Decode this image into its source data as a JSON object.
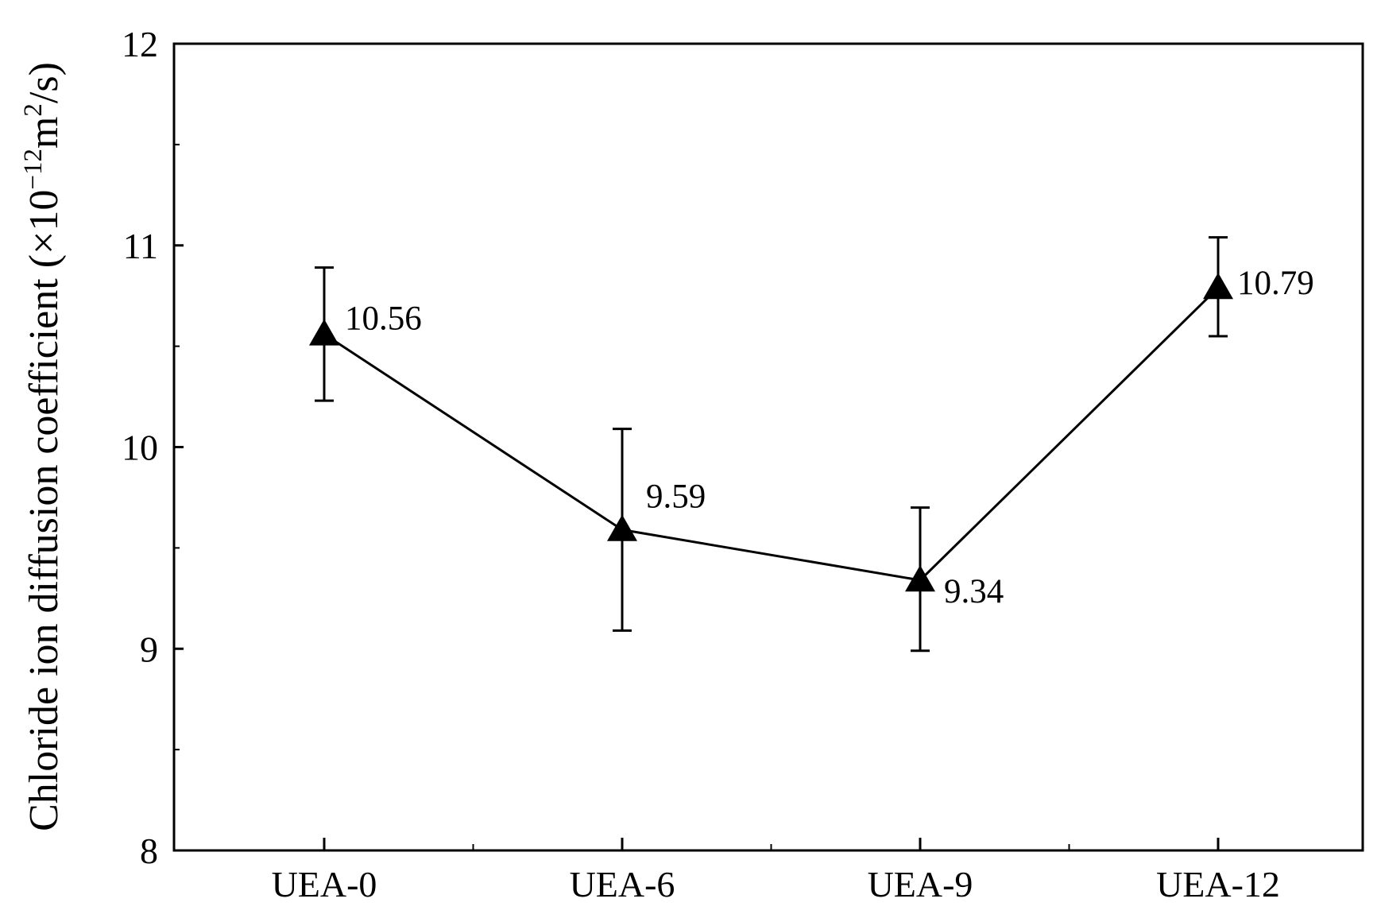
{
  "chart_data": {
    "type": "line",
    "title": "",
    "xlabel": "",
    "ylabel": {
      "main": "Chloride ion diffusion coefficient (×10",
      "exp": "−12",
      "unit": "m",
      "unit_exp": "2",
      "suffix": "/s)"
    },
    "ylim": [
      8,
      12
    ],
    "yticks": [
      8,
      9,
      10,
      11,
      12
    ],
    "categories": [
      "UEA-0",
      "UEA-6",
      "UEA-9",
      "UEA-12"
    ],
    "series": [
      {
        "values": [
          10.56,
          9.59,
          9.34,
          10.79
        ],
        "error_low": [
          10.23,
          9.09,
          8.99,
          10.55
        ],
        "error_high": [
          10.89,
          10.09,
          9.7,
          11.04
        ],
        "labels": [
          "10.56",
          "9.59",
          "9.34",
          "10.79"
        ],
        "marker": "triangle",
        "color": "#000000"
      }
    ],
    "grid": false,
    "legend": "none"
  }
}
